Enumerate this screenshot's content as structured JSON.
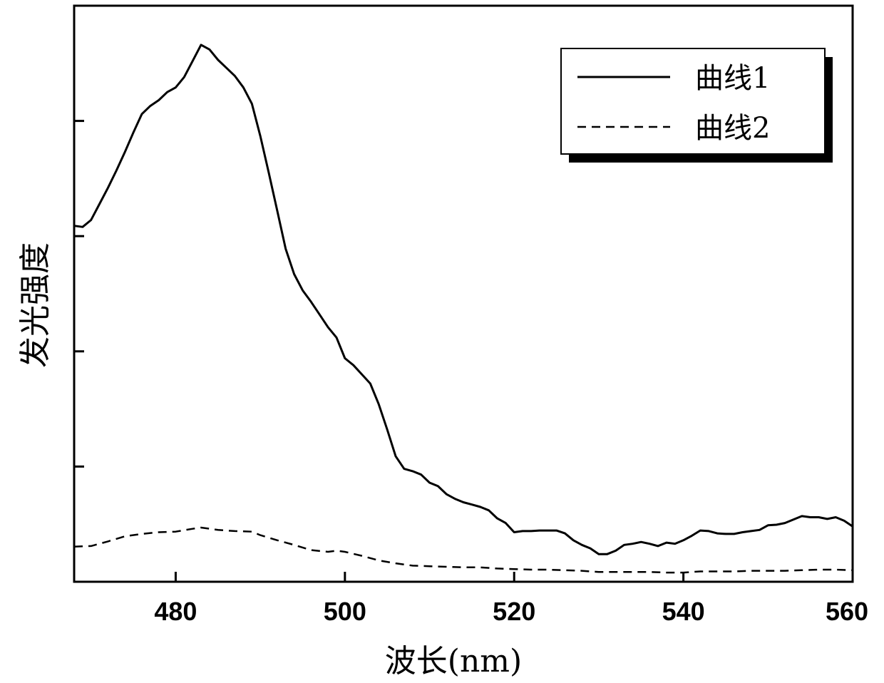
{
  "chart_data": {
    "type": "line",
    "xlabel": "波长(nm)",
    "ylabel": "发光强度",
    "xlim": [
      468,
      560
    ],
    "ylim": [
      0,
      100
    ],
    "x_ticks": [
      480,
      500,
      520,
      540,
      560
    ],
    "x_tick_labels": [
      "480",
      "500",
      "520",
      "540",
      "560"
    ],
    "y_ticks": [
      20,
      40,
      60,
      80,
      100
    ],
    "y_tick_labels_shown": false,
    "grid": false,
    "legend_position": "top-right",
    "series": [
      {
        "name": "曲线1",
        "style": "solid",
        "color": "#000000",
        "points": [
          [
            468,
            61.8
          ],
          [
            469,
            61.6
          ],
          [
            470,
            62.8
          ],
          [
            471,
            65.6
          ],
          [
            472,
            68.4
          ],
          [
            473,
            71.4
          ],
          [
            474,
            74.6
          ],
          [
            475,
            78.0
          ],
          [
            476,
            81.2
          ],
          [
            477,
            82.6
          ],
          [
            478,
            83.6
          ],
          [
            479,
            85.0
          ],
          [
            480,
            85.8
          ],
          [
            481,
            87.6
          ],
          [
            482,
            90.4
          ],
          [
            483,
            93.2
          ],
          [
            484,
            92.4
          ],
          [
            485,
            90.6
          ],
          [
            486,
            89.2
          ],
          [
            487,
            87.8
          ],
          [
            488,
            85.8
          ],
          [
            489,
            83.0
          ],
          [
            490,
            77.4
          ],
          [
            491,
            71.0
          ],
          [
            492,
            64.4
          ],
          [
            493,
            57.8
          ],
          [
            494,
            53.4
          ],
          [
            495,
            50.6
          ],
          [
            496,
            48.6
          ],
          [
            497,
            46.4
          ],
          [
            498,
            44.2
          ],
          [
            499,
            42.4
          ],
          [
            500,
            38.8
          ],
          [
            501,
            37.6
          ],
          [
            502,
            36.0
          ],
          [
            503,
            34.4
          ],
          [
            504,
            30.8
          ],
          [
            505,
            26.4
          ],
          [
            506,
            21.8
          ],
          [
            507,
            19.6
          ],
          [
            508,
            19.2
          ],
          [
            509,
            18.6
          ],
          [
            510,
            17.2
          ],
          [
            511,
            16.6
          ],
          [
            512,
            15.2
          ],
          [
            513,
            14.4
          ],
          [
            514,
            13.8
          ],
          [
            515,
            13.4
          ],
          [
            516,
            13.0
          ],
          [
            517,
            12.4
          ],
          [
            518,
            11.0
          ],
          [
            519,
            10.2
          ],
          [
            520,
            8.6
          ],
          [
            521,
            8.8
          ],
          [
            522,
            8.8
          ],
          [
            523,
            8.9
          ],
          [
            524,
            8.9
          ],
          [
            525,
            8.9
          ],
          [
            526,
            8.4
          ],
          [
            527,
            7.2
          ],
          [
            528,
            6.4
          ],
          [
            529,
            5.8
          ],
          [
            530,
            4.8
          ],
          [
            531,
            4.8
          ],
          [
            532,
            5.4
          ],
          [
            533,
            6.4
          ],
          [
            534,
            6.6
          ],
          [
            535,
            6.9
          ],
          [
            536,
            6.6
          ],
          [
            537,
            6.2
          ],
          [
            538,
            6.8
          ],
          [
            539,
            6.6
          ],
          [
            540,
            7.2
          ],
          [
            541,
            8.0
          ],
          [
            542,
            8.9
          ],
          [
            543,
            8.8
          ],
          [
            544,
            8.4
          ],
          [
            545,
            8.3
          ],
          [
            546,
            8.3
          ],
          [
            547,
            8.6
          ],
          [
            548,
            8.8
          ],
          [
            549,
            9.0
          ],
          [
            550,
            9.8
          ],
          [
            551,
            9.9
          ],
          [
            552,
            10.2
          ],
          [
            553,
            10.8
          ],
          [
            554,
            11.4
          ],
          [
            555,
            11.2
          ],
          [
            556,
            11.2
          ],
          [
            557,
            10.9
          ],
          [
            558,
            11.2
          ],
          [
            559,
            10.6
          ],
          [
            560,
            9.6
          ]
        ]
      },
      {
        "name": "曲线2",
        "style": "dashed",
        "color": "#000000",
        "points": [
          [
            468,
            6.1
          ],
          [
            470,
            6.2
          ],
          [
            472,
            7.0
          ],
          [
            474,
            7.9
          ],
          [
            476,
            8.3
          ],
          [
            478,
            8.6
          ],
          [
            480,
            8.7
          ],
          [
            482,
            9.2
          ],
          [
            483,
            9.4
          ],
          [
            485,
            9.0
          ],
          [
            487,
            8.8
          ],
          [
            489,
            8.7
          ],
          [
            490,
            8.1
          ],
          [
            492,
            7.2
          ],
          [
            494,
            6.4
          ],
          [
            496,
            5.5
          ],
          [
            498,
            5.2
          ],
          [
            499,
            5.4
          ],
          [
            500,
            5.2
          ],
          [
            502,
            4.5
          ],
          [
            504,
            3.7
          ],
          [
            506,
            3.2
          ],
          [
            508,
            2.8
          ],
          [
            510,
            2.7
          ],
          [
            512,
            2.6
          ],
          [
            514,
            2.5
          ],
          [
            516,
            2.5
          ],
          [
            518,
            2.3
          ],
          [
            520,
            2.2
          ],
          [
            522,
            2.1
          ],
          [
            524,
            2.1
          ],
          [
            526,
            2.0
          ],
          [
            528,
            1.9
          ],
          [
            530,
            1.7
          ],
          [
            532,
            1.7
          ],
          [
            534,
            1.7
          ],
          [
            536,
            1.7
          ],
          [
            538,
            1.6
          ],
          [
            540,
            1.6
          ],
          [
            542,
            1.8
          ],
          [
            544,
            1.8
          ],
          [
            546,
            1.8
          ],
          [
            548,
            1.9
          ],
          [
            550,
            1.9
          ],
          [
            552,
            1.9
          ],
          [
            554,
            2.0
          ],
          [
            556,
            2.1
          ],
          [
            558,
            2.1
          ],
          [
            560,
            2.0
          ]
        ]
      }
    ]
  }
}
